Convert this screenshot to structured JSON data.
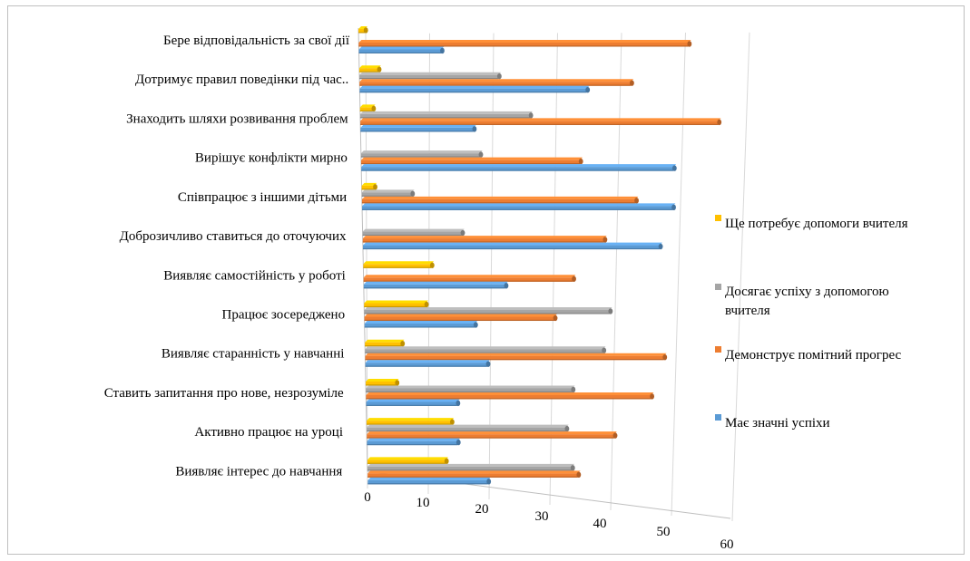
{
  "chart_data": {
    "type": "bar",
    "orientation": "horizontal",
    "style": "3d-perspective",
    "categories": [
      "Бере відповідальність за свої дії",
      "Дотримує правил поведінки під час..",
      "Знаходить шляхи розвивання проблем",
      "Вирішує конфлікти мирно",
      "Співпрацює з іншими дітьми",
      "Доброзичливо ставиться до оточуючих",
      "Виявляє самостійність у роботі",
      "Працює зосереджено",
      "Виявляє старанність у навчанні",
      "Ставить запитання про нове, незрозуміле",
      "Активно працює на уроці",
      "Виявляє інтерес до навчання"
    ],
    "series": [
      {
        "name": "Ще потребує допомоги вчителя",
        "color": "#FFC000",
        "values": [
          1,
          3,
          2,
          0,
          2,
          0,
          11,
          10,
          6,
          5,
          14,
          13
        ]
      },
      {
        "name": "Досягає успіху з допомогою вчителя",
        "color": "#A5A5A5",
        "values": [
          0,
          22,
          27,
          19,
          8,
          16,
          0,
          40,
          39,
          34,
          33,
          34
        ]
      },
      {
        "name": "Демонструє помітний прогрес",
        "color": "#ED7D31",
        "values": [
          52,
          43,
          57,
          35,
          44,
          39,
          34,
          31,
          49,
          47,
          41,
          35
        ]
      },
      {
        "name": "Має значні успіхи",
        "color": "#5B9BD5",
        "values": [
          13,
          36,
          18,
          50,
          50,
          48,
          23,
          18,
          20,
          15,
          15,
          20
        ]
      }
    ],
    "legend_order": [
      0,
      1,
      2,
      3
    ],
    "xticks": [
      "0",
      "10",
      "20",
      "30",
      "40",
      "50",
      "60"
    ],
    "xlim": [
      0,
      60
    ],
    "legend_position": "right"
  }
}
